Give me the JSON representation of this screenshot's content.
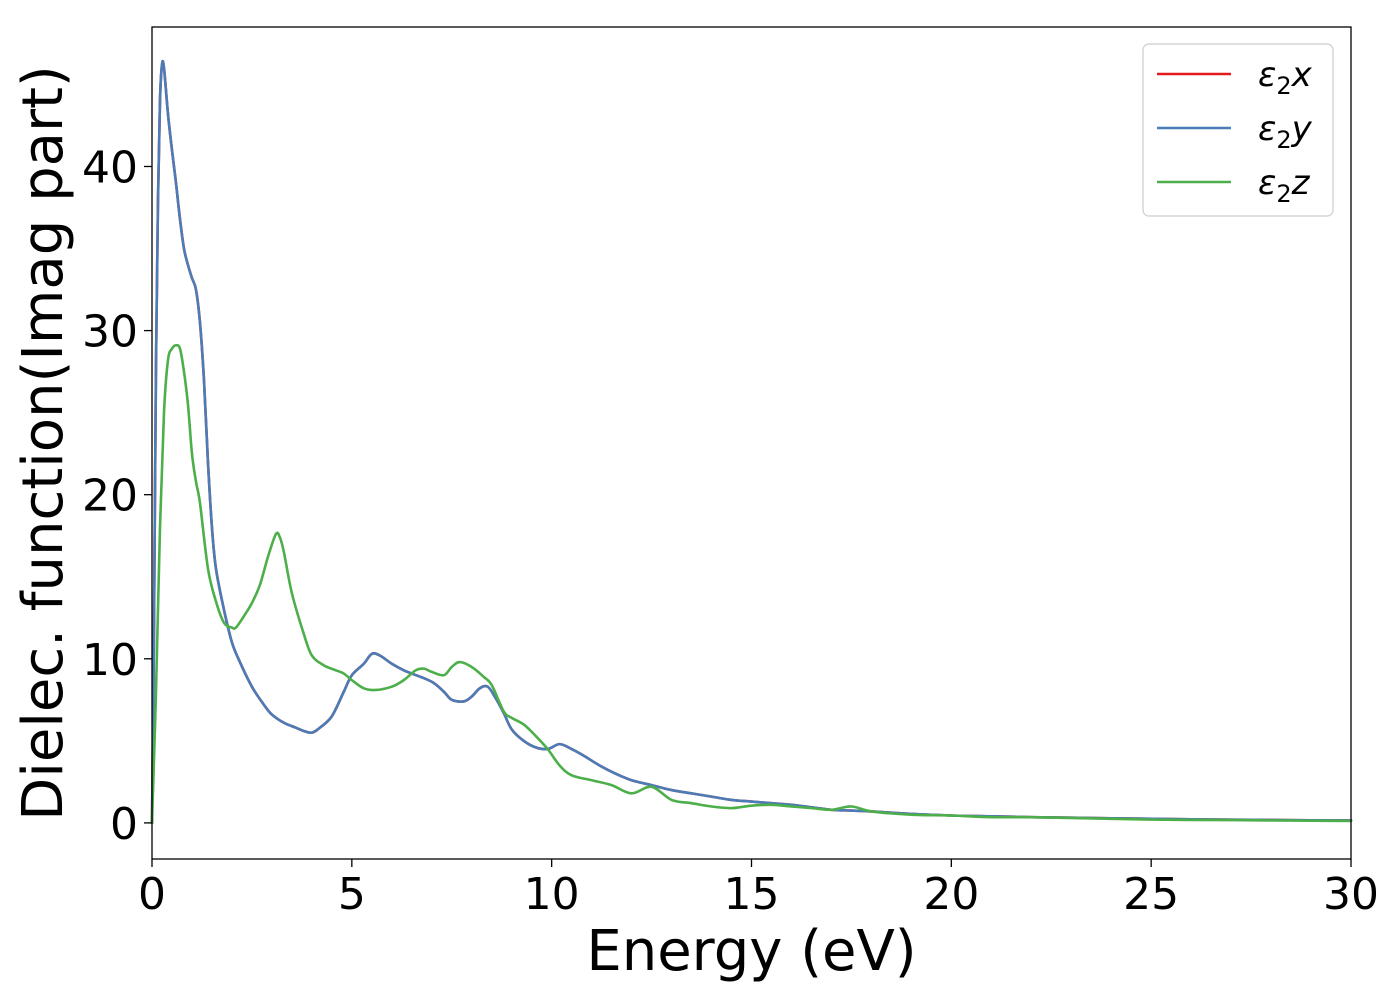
{
  "chart_data": {
    "type": "line",
    "xlabel": "Energy (eV)",
    "ylabel": "Dielec. function(Imag part)",
    "xlim": [
      0,
      30
    ],
    "ylim": [
      -2.2,
      48.5
    ],
    "xticks": [
      0,
      5,
      10,
      15,
      20,
      25,
      30
    ],
    "yticks": [
      0,
      10,
      20,
      30,
      40
    ],
    "grid": false,
    "legend": "top-right",
    "series": [
      {
        "name": "ε2x",
        "legend_base": "ε",
        "legend_sub": "2",
        "legend_var": "x",
        "color": "#e41a1c",
        "x": [
          0,
          0.05,
          0.1,
          0.15,
          0.2,
          0.25,
          0.3,
          0.4,
          0.5,
          0.6,
          0.7,
          0.8,
          0.9,
          1.0,
          1.1,
          1.2,
          1.3,
          1.4,
          1.5,
          1.6,
          1.8,
          2.0,
          2.2,
          2.5,
          2.8,
          3.0,
          3.3,
          3.6,
          3.8,
          4.0,
          4.2,
          4.5,
          4.8,
          5.0,
          5.3,
          5.5,
          5.7,
          6.0,
          6.3,
          6.5,
          7.0,
          7.3,
          7.5,
          7.8,
          8.0,
          8.2,
          8.4,
          8.6,
          8.8,
          9.0,
          9.3,
          9.6,
          9.9,
          10.2,
          10.5,
          10.8,
          11.2,
          11.6,
          12.0,
          12.5,
          13.0,
          13.5,
          14.0,
          14.5,
          15.0,
          15.5,
          16.0,
          16.5,
          17.0,
          17.5,
          18.0,
          19.0,
          20.0,
          21.0,
          22.0,
          23.0,
          24.0,
          25.0,
          26.0,
          27.0,
          28.0,
          29.0,
          30.0
        ],
        "values": [
          0,
          12,
          28,
          38,
          44,
          46.2,
          46.0,
          43.2,
          41.0,
          39.0,
          36.8,
          35.0,
          34.0,
          33.2,
          32.5,
          30.5,
          27.0,
          22.0,
          18.0,
          15.5,
          13.0,
          11.0,
          9.8,
          8.3,
          7.2,
          6.6,
          6.1,
          5.8,
          5.6,
          5.5,
          5.8,
          6.5,
          8.0,
          9.0,
          9.7,
          10.3,
          10.2,
          9.7,
          9.3,
          9.1,
          8.6,
          8.0,
          7.5,
          7.4,
          7.7,
          8.2,
          8.3,
          7.6,
          6.7,
          5.7,
          5.0,
          4.6,
          4.5,
          4.8,
          4.5,
          4.1,
          3.5,
          3.0,
          2.6,
          2.3,
          2.0,
          1.8,
          1.6,
          1.4,
          1.3,
          1.2,
          1.1,
          0.95,
          0.8,
          0.75,
          0.7,
          0.55,
          0.45,
          0.4,
          0.35,
          0.32,
          0.28,
          0.25,
          0.22,
          0.2,
          0.18,
          0.16,
          0.15
        ]
      },
      {
        "name": "ε2y",
        "legend_base": "ε",
        "legend_sub": "2",
        "legend_var": "y",
        "color": "#4a7cb8",
        "x": [
          0,
          0.05,
          0.1,
          0.15,
          0.2,
          0.25,
          0.3,
          0.4,
          0.5,
          0.6,
          0.7,
          0.8,
          0.9,
          1.0,
          1.1,
          1.2,
          1.3,
          1.4,
          1.5,
          1.6,
          1.8,
          2.0,
          2.2,
          2.5,
          2.8,
          3.0,
          3.3,
          3.6,
          3.8,
          4.0,
          4.2,
          4.5,
          4.8,
          5.0,
          5.3,
          5.5,
          5.7,
          6.0,
          6.3,
          6.5,
          7.0,
          7.3,
          7.5,
          7.8,
          8.0,
          8.2,
          8.4,
          8.6,
          8.8,
          9.0,
          9.3,
          9.6,
          9.9,
          10.2,
          10.5,
          10.8,
          11.2,
          11.6,
          12.0,
          12.5,
          13.0,
          13.5,
          14.0,
          14.5,
          15.0,
          15.5,
          16.0,
          16.5,
          17.0,
          17.5,
          18.0,
          19.0,
          20.0,
          21.0,
          22.0,
          23.0,
          24.0,
          25.0,
          26.0,
          27.0,
          28.0,
          29.0,
          30.0
        ],
        "values": [
          0,
          12,
          28,
          38,
          44,
          46.2,
          46.0,
          43.2,
          41.0,
          39.0,
          36.8,
          35.0,
          34.0,
          33.2,
          32.5,
          30.5,
          27.0,
          22.0,
          18.0,
          15.5,
          13.0,
          11.0,
          9.8,
          8.3,
          7.2,
          6.6,
          6.1,
          5.8,
          5.6,
          5.5,
          5.8,
          6.5,
          8.0,
          9.0,
          9.7,
          10.3,
          10.2,
          9.7,
          9.3,
          9.1,
          8.6,
          8.0,
          7.5,
          7.4,
          7.7,
          8.2,
          8.3,
          7.6,
          6.7,
          5.7,
          5.0,
          4.6,
          4.5,
          4.8,
          4.5,
          4.1,
          3.5,
          3.0,
          2.6,
          2.3,
          2.0,
          1.8,
          1.6,
          1.4,
          1.3,
          1.2,
          1.1,
          0.95,
          0.8,
          0.75,
          0.7,
          0.55,
          0.45,
          0.4,
          0.35,
          0.32,
          0.28,
          0.25,
          0.22,
          0.2,
          0.18,
          0.16,
          0.15
        ]
      },
      {
        "name": "ε2z",
        "legend_base": "ε",
        "legend_sub": "2",
        "legend_var": "z",
        "color": "#4daf4a",
        "x": [
          0,
          0.1,
          0.2,
          0.3,
          0.4,
          0.5,
          0.6,
          0.7,
          0.8,
          0.9,
          1.0,
          1.1,
          1.2,
          1.4,
          1.6,
          1.8,
          2.0,
          2.1,
          2.3,
          2.5,
          2.7,
          2.9,
          3.1,
          3.2,
          3.3,
          3.5,
          3.8,
          4.0,
          4.3,
          4.6,
          4.8,
          5.0,
          5.3,
          5.6,
          6.0,
          6.3,
          6.6,
          6.8,
          7.0,
          7.3,
          7.5,
          7.7,
          8.0,
          8.3,
          8.5,
          8.8,
          9.0,
          9.3,
          9.6,
          9.9,
          10.2,
          10.5,
          11.0,
          11.5,
          12.0,
          12.5,
          13.0,
          13.5,
          14.0,
          14.5,
          15.0,
          15.5,
          16.0,
          16.5,
          17.0,
          17.5,
          18.0,
          19.0,
          20.0,
          21.0,
          22.0,
          23.0,
          24.0,
          25.0,
          26.0,
          27.0,
          28.0,
          29.0,
          30.0
        ],
        "values": [
          0,
          8,
          18,
          25,
          28.2,
          28.9,
          29.1,
          28.9,
          27.5,
          25.5,
          22.5,
          20.8,
          19.5,
          15.5,
          13.5,
          12.2,
          11.9,
          11.9,
          12.6,
          13.4,
          14.5,
          16.2,
          17.6,
          17.4,
          16.5,
          14.0,
          11.5,
          10.2,
          9.6,
          9.3,
          9.1,
          8.7,
          8.2,
          8.1,
          8.3,
          8.7,
          9.3,
          9.4,
          9.2,
          9.0,
          9.5,
          9.8,
          9.5,
          8.9,
          8.4,
          6.8,
          6.4,
          6.0,
          5.3,
          4.5,
          3.5,
          2.9,
          2.6,
          2.3,
          1.8,
          2.2,
          1.4,
          1.2,
          1.0,
          0.9,
          1.05,
          1.1,
          1.0,
          0.9,
          0.8,
          1.0,
          0.7,
          0.5,
          0.45,
          0.35,
          0.35,
          0.3,
          0.25,
          0.2,
          0.18,
          0.17,
          0.15,
          0.13,
          0.12
        ]
      }
    ]
  }
}
